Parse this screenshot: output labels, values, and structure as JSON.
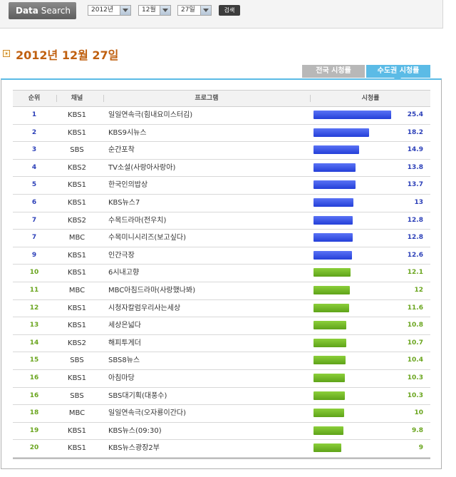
{
  "search": {
    "brand_bold": "Data",
    "brand_rest": " Search",
    "year": "2012년",
    "month": "12월",
    "day": "27일",
    "button_label": "검색"
  },
  "page": {
    "date_title": "2012년 12월 27일"
  },
  "tabs": {
    "nation": "전국 시청률",
    "capital": "수도권 시청률",
    "active": "capital"
  },
  "table": {
    "headers": {
      "rank": "순위",
      "channel": "채널",
      "program": "프로그램",
      "rating": "시청률"
    },
    "colors": {
      "blue": "#2b3fb8",
      "green": "#6aa51e"
    },
    "rows": [
      {
        "rank": "1",
        "channel": "KBS1",
        "program": "일일연속극(힘내요미스터김)",
        "rating": "25.4",
        "color": "blue"
      },
      {
        "rank": "2",
        "channel": "KBS1",
        "program": "KBS9시뉴스",
        "rating": "18.2",
        "color": "blue"
      },
      {
        "rank": "3",
        "channel": "SBS",
        "program": "순간포착",
        "rating": "14.9",
        "color": "blue"
      },
      {
        "rank": "4",
        "channel": "KBS2",
        "program": "TV소설(사랑아사랑아)",
        "rating": "13.8",
        "color": "blue"
      },
      {
        "rank": "5",
        "channel": "KBS1",
        "program": "한국인의밥상",
        "rating": "13.7",
        "color": "blue"
      },
      {
        "rank": "6",
        "channel": "KBS1",
        "program": "KBS뉴스7",
        "rating": "13",
        "color": "blue"
      },
      {
        "rank": "7",
        "channel": "KBS2",
        "program": "수목드라마(전우치)",
        "rating": "12.8",
        "color": "blue"
      },
      {
        "rank": "7",
        "channel": "MBC",
        "program": "수목미니시리즈(보고싶다)",
        "rating": "12.8",
        "color": "blue"
      },
      {
        "rank": "9",
        "channel": "KBS1",
        "program": "인간극장",
        "rating": "12.6",
        "color": "blue"
      },
      {
        "rank": "10",
        "channel": "KBS1",
        "program": "6시내고향",
        "rating": "12.1",
        "color": "green"
      },
      {
        "rank": "11",
        "channel": "MBC",
        "program": "MBC아침드라마(사랑했나봐)",
        "rating": "12",
        "color": "green"
      },
      {
        "rank": "12",
        "channel": "KBS1",
        "program": "시청자칼럼우리사는세상",
        "rating": "11.6",
        "color": "green"
      },
      {
        "rank": "13",
        "channel": "KBS1",
        "program": "세상은넓다",
        "rating": "10.8",
        "color": "green"
      },
      {
        "rank": "14",
        "channel": "KBS2",
        "program": "해피투게더",
        "rating": "10.7",
        "color": "green"
      },
      {
        "rank": "15",
        "channel": "SBS",
        "program": "SBS8뉴스",
        "rating": "10.4",
        "color": "green"
      },
      {
        "rank": "16",
        "channel": "KBS1",
        "program": "아침마당",
        "rating": "10.3",
        "color": "green"
      },
      {
        "rank": "16",
        "channel": "SBS",
        "program": "SBS대기획(대풍수)",
        "rating": "10.3",
        "color": "green"
      },
      {
        "rank": "18",
        "channel": "MBC",
        "program": "일일연속극(오자룡이간다)",
        "rating": "10",
        "color": "green"
      },
      {
        "rank": "19",
        "channel": "KBS1",
        "program": "KBS뉴스(09:30)",
        "rating": "9.8",
        "color": "green"
      },
      {
        "rank": "20",
        "channel": "KBS1",
        "program": "KBS뉴스광장2부",
        "rating": "9",
        "color": "green"
      }
    ]
  }
}
